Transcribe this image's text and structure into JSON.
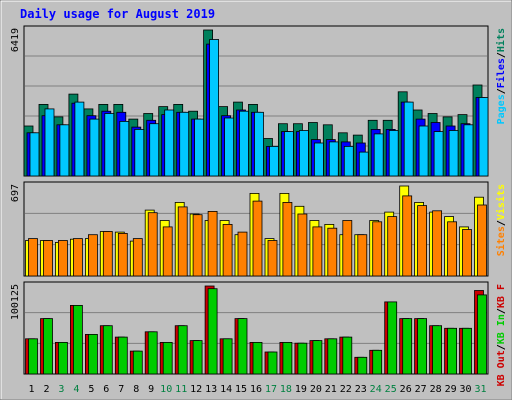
{
  "title": "Daily usage for August 2019",
  "colors": {
    "outer_bg": "#c0c0c0",
    "plot_bg": "#c0c0c0",
    "gridline": "#808080",
    "hits": "#00805c",
    "files": "#0000ff",
    "pages": "#00c8ff",
    "visits": "#ffff00",
    "sites": "#ff8000",
    "kb_in": "#00cc00",
    "kb_out": "#cc0000",
    "title": "#0000ff",
    "day_weekend": "#008040",
    "day_weekday": "#000000"
  },
  "chart_data": [
    {
      "type": "bar",
      "panel": "hits-files-pages",
      "y_max_label": "6419",
      "y_max": 6419,
      "legend": [
        {
          "name": "Hits",
          "color": "#00805c"
        },
        {
          "name": "Files",
          "color": "#0000ff"
        },
        {
          "name": "Pages",
          "color": "#00c8ff"
        }
      ],
      "legend_separator": "/",
      "categories": [
        "1",
        "2",
        "3",
        "4",
        "5",
        "6",
        "7",
        "8",
        "9",
        "10",
        "11",
        "12",
        "13",
        "14",
        "15",
        "16",
        "17",
        "18",
        "19",
        "20",
        "21",
        "22",
        "23",
        "24",
        "25",
        "26",
        "27",
        "28",
        "29",
        "30",
        "31"
      ],
      "series": [
        {
          "name": "Hits",
          "values": [
            2200,
            3150,
            2600,
            3600,
            2950,
            3150,
            3150,
            2500,
            2750,
            3050,
            3150,
            2850,
            6419,
            3050,
            3250,
            3150,
            1650,
            2300,
            2300,
            2350,
            2250,
            1900,
            1800,
            2450,
            2450,
            3700,
            2900,
            2750,
            2600,
            2700,
            4000
          ]
        },
        {
          "name": "Files",
          "values": [
            1900,
            2650,
            2250,
            3200,
            2650,
            2850,
            2800,
            2150,
            2450,
            2700,
            2800,
            2500,
            5800,
            2650,
            2900,
            2800,
            1300,
            1950,
            1950,
            1600,
            1600,
            1500,
            1450,
            2050,
            2050,
            3250,
            2500,
            2350,
            2200,
            2300,
            3450
          ]
        },
        {
          "name": "Pages",
          "values": [
            1900,
            2950,
            2250,
            3250,
            2500,
            2750,
            2400,
            2050,
            2300,
            2900,
            2800,
            2500,
            6000,
            2550,
            2850,
            2800,
            1300,
            1950,
            2000,
            1450,
            1500,
            1300,
            1050,
            1850,
            2000,
            3250,
            2200,
            1950,
            2000,
            2250,
            3450
          ]
        }
      ]
    },
    {
      "type": "bar",
      "panel": "visits-sites",
      "y_max_label": "697",
      "y_max": 697,
      "legend": [
        {
          "name": "Visits",
          "color": "#ffff00"
        },
        {
          "name": "Sites",
          "color": "#ff8000"
        }
      ],
      "legend_separator": "/",
      "categories": [
        "1",
        "2",
        "3",
        "4",
        "5",
        "6",
        "7",
        "8",
        "9",
        "10",
        "11",
        "12",
        "13",
        "14",
        "15",
        "16",
        "17",
        "18",
        "19",
        "20",
        "21",
        "22",
        "23",
        "24",
        "25",
        "26",
        "27",
        "28",
        "29",
        "30",
        "31"
      ],
      "series": [
        {
          "name": "Visits",
          "values": [
            275,
            275,
            260,
            285,
            290,
            345,
            340,
            270,
            510,
            430,
            570,
            480,
            430,
            430,
            320,
            640,
            290,
            640,
            540,
            430,
            400,
            320,
            320,
            430,
            495,
            697,
            570,
            495,
            460,
            380,
            610
          ]
        },
        {
          "name": "Sites",
          "values": [
            290,
            275,
            275,
            290,
            320,
            345,
            330,
            290,
            490,
            380,
            535,
            475,
            500,
            400,
            340,
            580,
            275,
            570,
            480,
            380,
            370,
            430,
            320,
            420,
            460,
            620,
            545,
            505,
            420,
            360,
            550
          ]
        }
      ]
    },
    {
      "type": "bar",
      "panel": "kb-in-out",
      "y_max_label": "100125",
      "y_max": 100125,
      "legend": [
        {
          "name": "KB F",
          "color": "#cc0000"
        },
        {
          "name": "KB In",
          "color": "#00cc00"
        },
        {
          "name": "KB Out",
          "color": "#cc0000"
        }
      ],
      "legend_separator": "/",
      "categories": [
        "1",
        "2",
        "3",
        "4",
        "5",
        "6",
        "7",
        "8",
        "9",
        "10",
        "11",
        "12",
        "13",
        "14",
        "15",
        "16",
        "17",
        "18",
        "19",
        "20",
        "21",
        "22",
        "23",
        "24",
        "25",
        "26",
        "27",
        "28",
        "29",
        "30",
        "31"
      ],
      "series": [
        {
          "name": "KB Out",
          "values": [
            40000,
            63000,
            36000,
            78000,
            45000,
            55000,
            42000,
            26000,
            48000,
            36000,
            55000,
            38000,
            100125,
            40000,
            63000,
            36000,
            25000,
            36000,
            35000,
            38000,
            40000,
            42000,
            19000,
            27000,
            82000,
            63000,
            63000,
            55000,
            52000,
            52000,
            95000
          ]
        },
        {
          "name": "KB In",
          "values": [
            40000,
            63000,
            36000,
            78000,
            45000,
            55000,
            42000,
            26000,
            48000,
            36000,
            55000,
            38000,
            97000,
            40000,
            63000,
            36000,
            25000,
            36000,
            35000,
            38000,
            40000,
            42000,
            19000,
            27000,
            82000,
            63000,
            63000,
            55000,
            52000,
            52000,
            90000
          ]
        }
      ]
    }
  ],
  "x_axis": {
    "days": [
      "1",
      "2",
      "3",
      "4",
      "5",
      "6",
      "7",
      "8",
      "9",
      "10",
      "11",
      "12",
      "13",
      "14",
      "15",
      "16",
      "17",
      "18",
      "19",
      "20",
      "21",
      "22",
      "23",
      "24",
      "25",
      "26",
      "27",
      "28",
      "29",
      "30",
      "31"
    ],
    "weekend_days": [
      "3",
      "4",
      "10",
      "11",
      "17",
      "18",
      "24",
      "25",
      "31"
    ]
  }
}
